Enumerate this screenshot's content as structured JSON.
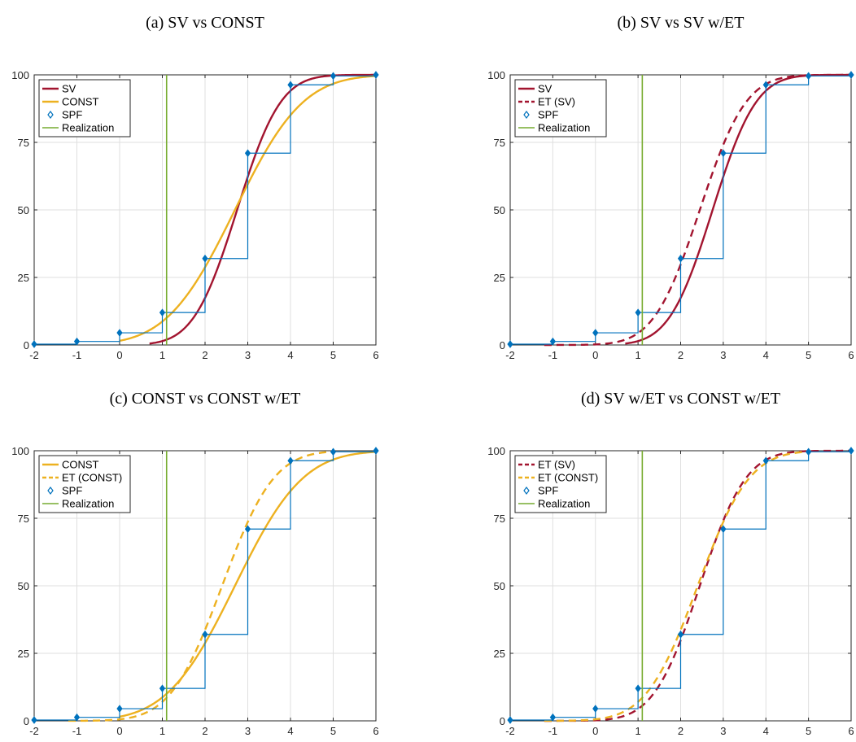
{
  "colors": {
    "sv": "#a2142f",
    "const": "#edb120",
    "spf": "#0072bd",
    "realization": "#77ac30",
    "grid": "#dfdfdf",
    "axis": "#262626"
  },
  "chart_data": [
    {
      "type": "line",
      "title": "(a) SV vs CONST",
      "xlim": [
        -2,
        6
      ],
      "ylim": [
        0,
        100
      ],
      "xticks": [
        -2,
        -1,
        0,
        1,
        2,
        3,
        4,
        5,
        6
      ],
      "yticks": [
        0,
        25,
        50,
        75,
        100
      ],
      "grid": true,
      "legend_position": "top-left",
      "series": [
        {
          "name": "SV",
          "kind": "cdf",
          "style": "solid",
          "color": "sv",
          "mu": 2.75,
          "sigma": 0.8,
          "xmin": 0.7,
          "xmax": 6
        },
        {
          "name": "CONST",
          "kind": "cdf",
          "style": "solid",
          "color": "const",
          "mu": 2.7,
          "sigma": 1.25,
          "xmin": 0,
          "xmax": 6
        },
        {
          "name": "SPF",
          "kind": "markers",
          "color": "spf",
          "x": [
            -2,
            -1,
            0,
            1,
            2,
            3,
            4,
            5,
            6
          ],
          "y": [
            0.3,
            1.3,
            4.5,
            12,
            32,
            71,
            96.3,
            99.6,
            100
          ]
        },
        {
          "name": "Realization",
          "kind": "vline",
          "color": "realization",
          "x": 1.1
        }
      ]
    },
    {
      "type": "line",
      "title": "(b) SV vs SV w/ET",
      "xlim": [
        -2,
        6
      ],
      "ylim": [
        0,
        100
      ],
      "xticks": [
        -2,
        -1,
        0,
        1,
        2,
        3,
        4,
        5,
        6
      ],
      "yticks": [
        0,
        25,
        50,
        75,
        100
      ],
      "grid": true,
      "legend_position": "top-left",
      "series": [
        {
          "name": "SV",
          "kind": "cdf",
          "style": "solid",
          "color": "sv",
          "mu": 2.75,
          "sigma": 0.8,
          "xmin": 0.7,
          "xmax": 6
        },
        {
          "name": "ET (SV)",
          "kind": "cdf",
          "style": "dashed",
          "color": "sv",
          "mu": 2.45,
          "sigma": 0.85,
          "xmin": -1.2,
          "xmax": 6
        },
        {
          "name": "SPF",
          "kind": "markers",
          "color": "spf",
          "x": [
            -2,
            -1,
            0,
            1,
            2,
            3,
            4,
            5,
            6
          ],
          "y": [
            0.3,
            1.3,
            4.5,
            12,
            32,
            71,
            96.3,
            99.6,
            100
          ]
        },
        {
          "name": "Realization",
          "kind": "vline",
          "color": "realization",
          "x": 1.1
        }
      ]
    },
    {
      "type": "line",
      "title": "(c) CONST vs CONST w/ET",
      "xlim": [
        -2,
        6
      ],
      "ylim": [
        0,
        100
      ],
      "xticks": [
        -2,
        -1,
        0,
        1,
        2,
        3,
        4,
        5,
        6
      ],
      "yticks": [
        0,
        25,
        50,
        75,
        100
      ],
      "grid": true,
      "legend_position": "top-left",
      "series": [
        {
          "name": "CONST",
          "kind": "cdf",
          "style": "solid",
          "color": "const",
          "mu": 2.7,
          "sigma": 1.25,
          "xmin": 0,
          "xmax": 6
        },
        {
          "name": "ET (CONST)",
          "kind": "cdf",
          "style": "dashed",
          "color": "const",
          "mu": 2.4,
          "sigma": 0.95,
          "xmin": -1.2,
          "xmax": 5
        },
        {
          "name": "SPF",
          "kind": "markers",
          "color": "spf",
          "x": [
            -2,
            -1,
            0,
            1,
            2,
            3,
            4,
            5,
            6
          ],
          "y": [
            0.3,
            1.3,
            4.5,
            12,
            32,
            71,
            96.3,
            99.6,
            100
          ]
        },
        {
          "name": "Realization",
          "kind": "vline",
          "color": "realization",
          "x": 1.1
        }
      ]
    },
    {
      "type": "line",
      "title": "(d) SV w/ET vs CONST w/ET",
      "xlim": [
        -2,
        6
      ],
      "ylim": [
        0,
        100
      ],
      "xticks": [
        -2,
        -1,
        0,
        1,
        2,
        3,
        4,
        5,
        6
      ],
      "yticks": [
        0,
        25,
        50,
        75,
        100
      ],
      "grid": true,
      "legend_position": "top-left",
      "series": [
        {
          "name": "ET (SV)",
          "kind": "cdf",
          "style": "dashed",
          "color": "sv",
          "mu": 2.45,
          "sigma": 0.85,
          "xmin": -1.2,
          "xmax": 6
        },
        {
          "name": "ET (CONST)",
          "kind": "cdf",
          "style": "dashed",
          "color": "const",
          "mu": 2.4,
          "sigma": 0.95,
          "xmin": -1.2,
          "xmax": 5
        },
        {
          "name": "SPF",
          "kind": "markers",
          "color": "spf",
          "x": [
            -2,
            -1,
            0,
            1,
            2,
            3,
            4,
            5,
            6
          ],
          "y": [
            0.3,
            1.3,
            4.5,
            12,
            32,
            71,
            96.3,
            99.6,
            100
          ]
        },
        {
          "name": "Realization",
          "kind": "vline",
          "color": "realization",
          "x": 1.1
        }
      ]
    }
  ]
}
